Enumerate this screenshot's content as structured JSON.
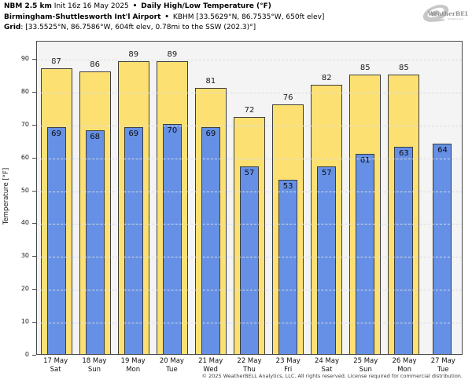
{
  "header": {
    "model_bold": "NBM 2.5 km",
    "init": "Init 16z 16 May 2025",
    "separator": "•",
    "product_bold": "Daily High/Low Temperature (°F)",
    "station_bold": "Birmingham-Shuttlesworth Int'l Airport",
    "station_info": "KBHM [33.5629°N, 86.7535°W, 650ft elev]",
    "grid_bold": "Grid",
    "grid_info": ": [33.5525°N, 86.7586°W, 604ft elev, 0.78mi to the SSW (202.3)°]"
  },
  "logo": {
    "brand": "WeatherBELL",
    "sub": "Analytics LLC"
  },
  "chart_data": {
    "type": "bar",
    "title": "Daily High/Low Temperature (°F)",
    "xlabel": "",
    "ylabel": "Temperature [°F]",
    "ylim": [
      0,
      95.5
    ],
    "yticks": [
      0,
      10,
      20,
      30,
      40,
      50,
      60,
      70,
      80,
      90
    ],
    "grid": "horizontal-dashed",
    "legend": "none",
    "categories": [
      "17 May Sat",
      "18 May Sun",
      "19 May Mon",
      "20 May Tue",
      "21 May Wed",
      "22 May Thu",
      "23 May Fri",
      "24 May Sat",
      "25 May Sun",
      "26 May Mon",
      "27 May Tue"
    ],
    "series": [
      {
        "name": "Daily High",
        "color": "#FCE172",
        "values": [
          87,
          86,
          89,
          89,
          81,
          72,
          76,
          82,
          85,
          85,
          null
        ]
      },
      {
        "name": "Daily Low",
        "color": "#6590E5",
        "values": [
          69,
          68,
          69,
          70,
          69,
          57,
          53,
          57,
          61,
          63,
          64
        ]
      }
    ],
    "days": [
      {
        "date": "17 May",
        "weekday": "Sat",
        "high": 87,
        "low": 69
      },
      {
        "date": "18 May",
        "weekday": "Sun",
        "high": 86,
        "low": 68
      },
      {
        "date": "19 May",
        "weekday": "Mon",
        "high": 89,
        "low": 69
      },
      {
        "date": "20 May",
        "weekday": "Tue",
        "high": 89,
        "low": 70
      },
      {
        "date": "21 May",
        "weekday": "Wed",
        "high": 81,
        "low": 69
      },
      {
        "date": "22 May",
        "weekday": "Thu",
        "high": 72,
        "low": 57
      },
      {
        "date": "23 May",
        "weekday": "Fri",
        "high": 76,
        "low": 53
      },
      {
        "date": "24 May",
        "weekday": "Sat",
        "high": 82,
        "low": 57
      },
      {
        "date": "25 May",
        "weekday": "Sun",
        "high": 85,
        "low": 61
      },
      {
        "date": "26 May",
        "weekday": "Mon",
        "high": 85,
        "low": 63
      },
      {
        "date": "27 May",
        "weekday": "Tue",
        "high": null,
        "low": 64
      }
    ]
  },
  "footer": "© 2025 WeatherBELL Analytics, LLC. All rights reserved. License required for commercial distribution.",
  "colors": {
    "high_bar": "#FCE172",
    "low_bar": "#6590E5",
    "bar_border": "#3d3d3d",
    "plot_background": "#f4f4f4",
    "gridline": "#dcdcdc",
    "frame": "#4a4a4a",
    "logo_gray": "#b3b3b3"
  }
}
